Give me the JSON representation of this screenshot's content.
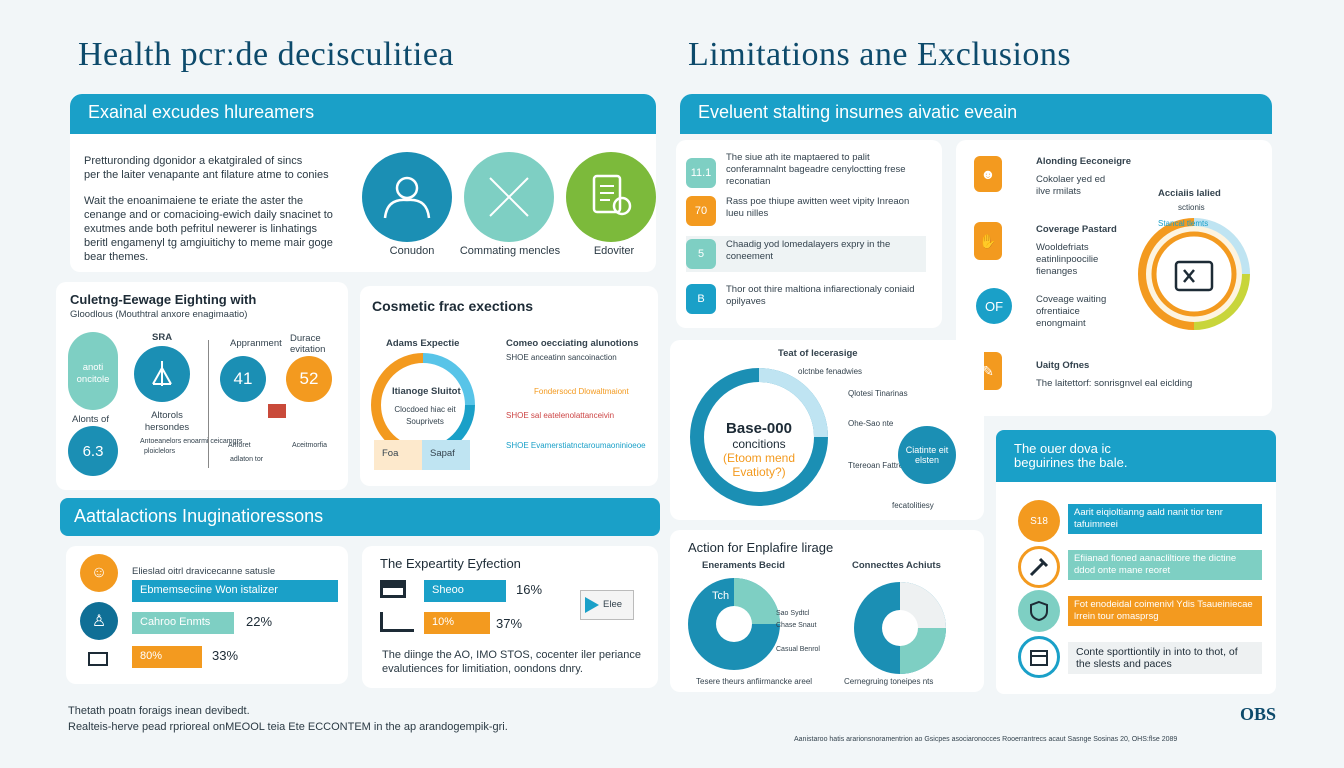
{
  "left_title": "Health pcrːde decisculitiea",
  "right_title": "Limitations ane Exclusions",
  "left_top_bar": "Exainal excudes hlureamers",
  "right_top_bar": "Eveluent stalting insurnes aivatic eveain",
  "intro": {
    "line1": "Pretturonding dgonidor a ekatgiraled of sincs",
    "line2": "per the laiter venapante ant filature atme to conies",
    "line3": "Wait the enoanimaiene te eriate the aster the",
    "line4": "cenange and or comacioing-ewich daily snacinet to",
    "line5": "exutmes ande both pefritul newerer is linhatings",
    "line6": "beritl engamenyl tg amgiuitichy to meme mair goge",
    "line7": "bear themes."
  },
  "icons_row": {
    "item1": "Conudon",
    "item2": "Commating mencles",
    "item3": "Edoviter"
  },
  "waiting": {
    "title": "Culetng-Eewage Eighting with",
    "subtitle": "Gloodlous (Mouthtral anxore enagimaatio)",
    "sra": "SRA",
    "appr": "Appranment",
    "durace": "Durace",
    "evitation": "evitation",
    "val_41": "41",
    "val_52": "52",
    "val_63": "6.3",
    "pill_label": "anoti oncitole",
    "alonts": "Alonts of",
    "hersonds": "Altorols hersondes",
    "foot1": "Antoeanelors enoarmi ceicamgrs",
    "foot2": "ploiclelors",
    "foot3": "Anforet",
    "foot4": "Aceitmorfia",
    "foot5": "adlaton tor"
  },
  "cosmetic": {
    "title": "Cosmetic frac exections",
    "left_label": "Adams Expectie",
    "right_label": "Comeo oecciating alunotions",
    "inner1": "Itianoge Sluitot",
    "inner2": "Clocdoed hiac eit Souprivets",
    "row1": "SHOE anceatinn sancoinaction",
    "row2": "Fondersocd Dlowaltmaiont",
    "row3": "SHOE sal eatelenolattanceivin",
    "row4": "SHOE Evamerstiatnctaroumaoninioeoe",
    "box1": "Foa",
    "box2": "Sapaf"
  },
  "list_items": [
    {
      "badge": "11.1",
      "text": "The siue ath ite maptaered to palit conferamnalnt bageadre cenyloctting frese reconatian"
    },
    {
      "badge": "70",
      "text": "Rass poe thiupe awitten weet vipity Inreaon lueu nilles"
    },
    {
      "badge": "5",
      "text": "Chaadig yod lomedalayers expry in the coneement"
    },
    {
      "badge": "B",
      "text": "Thor oot thire maltiona infiarectionaly coniaid opilyaves"
    }
  ],
  "right_cards": [
    {
      "title": "Alonding Eeconeigre",
      "text": "Cokolaer yed ed ilve rmilats"
    },
    {
      "title": "Coverage Pastard",
      "text": "Wooldefriats eatinlinpoocilie fienanges"
    },
    {
      "title": "Coveage waiting",
      "text": "ofrentiaice enongmaint"
    },
    {
      "title": "Uaitg Ofnes",
      "text": "The laitettorf: sonrisgnvel eal eiclding"
    }
  ],
  "right_ring": {
    "title": "Acciaiis lalied",
    "subtitle": "sctionis",
    "label": "Stancal tlemts"
  },
  "donut": {
    "title": "Teat of lecerasige",
    "line1": "Base-000",
    "line2": "concitions",
    "line3": "(Etoom mend",
    "line4": "Evatioty?)",
    "c1": "Ciatinte eit elsten",
    "n1": "olctnbe fenadwies",
    "n2": "Qlotesi Tinarinas",
    "n3": "Ohe-Sao nte",
    "n4": "Ttereoan Fattres",
    "n5": "fecatolitiesy"
  },
  "mid_bar": "Aattalactions Inuginatioressons",
  "eligible": {
    "title": "Elieslad oitrl dravicecanne satusle",
    "bar1": "Ebmemseciine Won istalizer",
    "bar2": "Cahroo Enmts",
    "pct2": "22%",
    "bar3": "80%",
    "pct3": "33%"
  },
  "expertly": {
    "title": "The Expeartity Eyfection",
    "bar1": "Sheoo",
    "pct1": "16%",
    "bar2": "10%",
    "pct2": "37%",
    "note1": "The diinge the AO, IMO STOS, cocenter iler periance",
    "note2": "evalutiences for limitiation, oondons dnry.",
    "video": "Elee"
  },
  "action": {
    "title": "Action for Enplafire lirage",
    "left": "Eneraments Becid",
    "right": "Connecttes Achiuts",
    "tch": "Tch",
    "foot_left": "Tesere theurs anfiirmancke areel",
    "foot_right": "Cernegruing toneipes nts",
    "lab1": "Sao Sydtcl",
    "lab2": "Chase Snaut",
    "lab3": "Casual Benrol"
  },
  "overdue": {
    "header1": "The ouer dova ic",
    "header2": "beguirines the bale.",
    "items": [
      "Aarit eiqioltianng aald nanit tior tenr tafuimneei",
      "Efiianad fioned aanacliltiore the dictine ddod onte mane reoret",
      "Fot enodeidal coimenivl Ydis Tsaueiniecae lrrein tour omasprsg",
      "Conte sporttiontily in into to thot, of the slests and paces"
    ],
    "badge": "S18"
  },
  "footer": {
    "line1": "Thetath poatn foraigs inean devibedt.",
    "line2": "Realteis-herve pead rprioreal onMEOOL teia Ete ECCONTEM in the ap arandogempik-gri.",
    "brand": "OBS",
    "small": "Aanistaroo hatis ararionsnoramentrion ao Gsicpes asociaronocces Rooerrantrecs acaut Sasnge Sosinas 20, OHS:flse 2089"
  },
  "colors": {
    "teal": "#1aa0c8",
    "navy": "#0d4a6b",
    "orange": "#f39a1f",
    "green": "#7cba3b",
    "mint": "#7ecfc3"
  }
}
